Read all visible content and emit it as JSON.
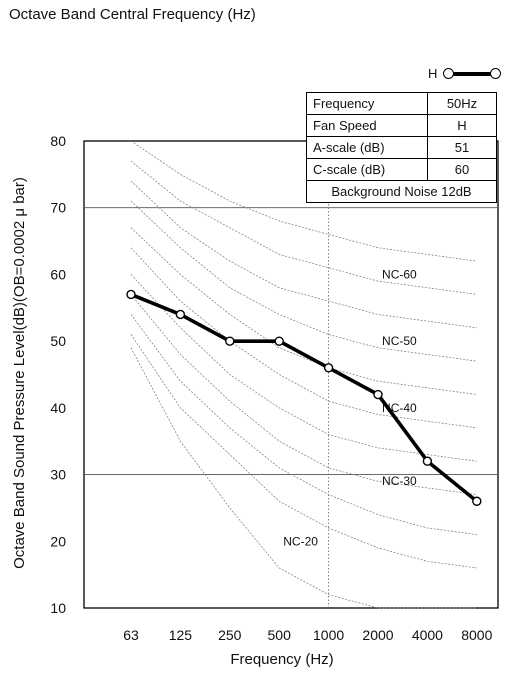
{
  "page_title": "Octave Band Central Frequency (Hz)",
  "legend": {
    "label": "H"
  },
  "info_table": {
    "rows": [
      {
        "label": "Frequency",
        "value": "50Hz"
      },
      {
        "label": "Fan Speed",
        "value": "H"
      },
      {
        "label": "A-scale (dB)",
        "value": "51"
      },
      {
        "label": "C-scale (dB)",
        "value": "60"
      }
    ],
    "footer": "Background Noise 12dB"
  },
  "chart_data": {
    "type": "line",
    "xlabel": "Frequency (Hz)",
    "ylabel": "Octave Band Sound Pressure Level(dB)(OB=0.0002 μ bar)",
    "categories": [
      "63",
      "125",
      "250",
      "500",
      "1000",
      "2000",
      "4000",
      "8000"
    ],
    "yticks": [
      10,
      20,
      30,
      40,
      50,
      60,
      70,
      80
    ],
    "ylim": [
      10,
      80
    ],
    "reference_lines_y": [
      30,
      70
    ],
    "grid": false,
    "legend_position": "top-right",
    "series": [
      {
        "name": "H",
        "values": [
          57,
          54,
          50,
          50,
          46,
          42,
          32,
          26
        ]
      }
    ],
    "nc_curves": [
      {
        "label": "",
        "values": [
          80,
          75,
          71,
          68,
          66,
          64,
          63,
          62
        ]
      },
      {
        "label": "NC-60",
        "values": [
          77,
          71,
          67,
          63,
          61,
          59,
          58,
          57
        ]
      },
      {
        "label": "",
        "values": [
          74,
          67,
          62,
          58,
          56,
          54,
          53,
          52
        ]
      },
      {
        "label": "NC-50",
        "values": [
          71,
          64,
          58,
          54,
          51,
          49,
          48,
          47
        ]
      },
      {
        "label": "",
        "values": [
          67,
          60,
          54,
          49,
          46,
          44,
          43,
          42
        ]
      },
      {
        "label": "NC-40",
        "values": [
          64,
          56,
          50,
          45,
          41,
          39,
          38,
          37
        ]
      },
      {
        "label": "",
        "values": [
          60,
          52,
          45,
          40,
          36,
          34,
          33,
          32
        ]
      },
      {
        "label": "NC-30",
        "values": [
          57,
          48,
          41,
          35,
          31,
          29,
          28,
          27
        ]
      },
      {
        "label": "",
        "values": [
          54,
          44,
          37,
          31,
          27,
          24,
          22,
          21
        ]
      },
      {
        "label": "NC-20",
        "values": [
          51,
          40,
          33,
          26,
          22,
          19,
          17,
          16
        ]
      },
      {
        "label": "",
        "values": [
          49,
          35,
          25,
          16,
          12,
          10,
          10,
          10
        ]
      }
    ],
    "nc_label_positions": [
      {
        "label": "NC-60",
        "category_index": 6,
        "value": 60
      },
      {
        "label": "NC-50",
        "category_index": 6,
        "value": 50
      },
      {
        "label": "NC-40",
        "category_index": 6,
        "value": 40
      },
      {
        "label": "NC-30",
        "category_index": 6,
        "value": 29
      },
      {
        "label": "NC-20",
        "category_index": 4,
        "value": 20
      }
    ]
  }
}
